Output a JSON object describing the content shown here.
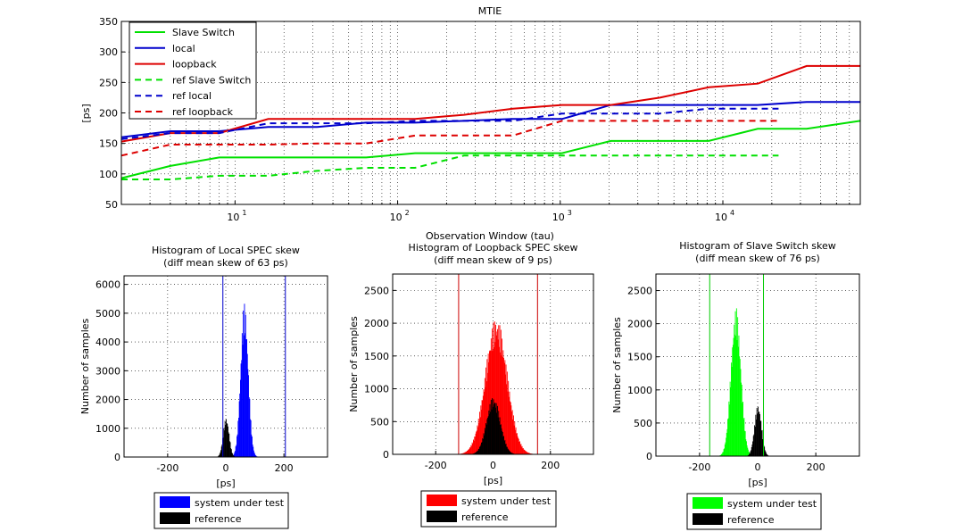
{
  "chart_data": [
    {
      "type": "line",
      "title": "MTIE",
      "xlabel": "Observation Window (tau)",
      "ylabel": "[ps]",
      "xscale": "log",
      "xlim": [
        2,
        70000
      ],
      "ylim": [
        50,
        350
      ],
      "yticks": [
        50,
        100,
        150,
        200,
        250,
        300,
        350
      ],
      "xticks": [
        10,
        100,
        1000,
        10000
      ],
      "xtick_labels": [
        [
          "10",
          "1"
        ],
        [
          "10",
          "2"
        ],
        [
          "10",
          "3"
        ],
        [
          "10",
          "4"
        ]
      ],
      "grid": true,
      "legend_position": "top-left",
      "series": [
        {
          "name": "Slave Switch",
          "color": "#00e000",
          "dash": false,
          "x": [
            2,
            4,
            8,
            16,
            32,
            64,
            128,
            256,
            512,
            1024,
            2048,
            4096,
            8192,
            16384,
            32768,
            70000
          ],
          "y": [
            93,
            113,
            127,
            127,
            127,
            127,
            134,
            134,
            134,
            134,
            154,
            154,
            154,
            174,
            174,
            187
          ]
        },
        {
          "name": "local",
          "color": "#0000cc",
          "dash": false,
          "x": [
            2,
            4,
            8,
            16,
            32,
            64,
            128,
            256,
            512,
            1024,
            2048,
            4096,
            8192,
            16384,
            32768,
            70000
          ],
          "y": [
            160,
            170,
            170,
            177,
            177,
            184,
            184,
            187,
            190,
            190,
            213,
            213,
            213,
            213,
            218,
            218
          ]
        },
        {
          "name": "loopback",
          "color": "#dd0000",
          "dash": false,
          "x": [
            2,
            4,
            8,
            16,
            32,
            64,
            128,
            256,
            512,
            1024,
            2048,
            4096,
            8192,
            16384,
            32768,
            70000
          ],
          "y": [
            153,
            167,
            167,
            190,
            190,
            190,
            190,
            197,
            207,
            213,
            213,
            225,
            242,
            248,
            277,
            277
          ]
        },
        {
          "name": "ref Slave Switch",
          "color": "#00e000",
          "dash": true,
          "x": [
            2,
            4,
            8,
            16,
            32,
            64,
            128,
            256,
            512,
            1024,
            2048,
            4096,
            8192,
            22000
          ],
          "y": [
            91,
            91,
            97,
            97,
            105,
            110,
            110,
            130,
            130,
            130,
            130,
            130,
            130,
            130
          ]
        },
        {
          "name": "ref local",
          "color": "#0000cc",
          "dash": true,
          "x": [
            2,
            4,
            8,
            16,
            32,
            64,
            128,
            256,
            512,
            1024,
            2048,
            4096,
            8192,
            22000
          ],
          "y": [
            157,
            167,
            167,
            183,
            183,
            183,
            187,
            187,
            187,
            199,
            199,
            199,
            207,
            207
          ]
        },
        {
          "name": "ref loopback",
          "color": "#dd0000",
          "dash": true,
          "x": [
            2,
            4,
            8,
            16,
            32,
            64,
            128,
            256,
            512,
            1024,
            2048,
            4096,
            8192,
            22000
          ],
          "y": [
            130,
            148,
            148,
            148,
            150,
            150,
            163,
            163,
            163,
            187,
            187,
            187,
            187,
            187
          ]
        }
      ]
    },
    {
      "type": "histogram",
      "title": "Histogram of Local SPEC skew",
      "subtitle": "(diff mean skew of 63 ps)",
      "xlabel": "[ps]",
      "ylabel": "Number of samples",
      "xlim": [
        -350,
        350
      ],
      "ylim": [
        0,
        6300
      ],
      "xticks": [
        -200,
        0,
        200
      ],
      "yticks": [
        0,
        1000,
        2000,
        3000,
        4000,
        5000,
        6000
      ],
      "limits": [
        -10,
        205
      ],
      "limit_color": "#0000cc",
      "grid": true,
      "legend_position": "below",
      "series": [
        {
          "name": "system under test",
          "color": "#0000ff",
          "mean": 63,
          "sd": 13,
          "peak": 5350
        },
        {
          "name": "reference",
          "color": "#000000",
          "mean": 0,
          "sd": 10,
          "peak": 1380
        }
      ]
    },
    {
      "type": "histogram",
      "title": "Histogram of Loopback SPEC skew",
      "subtitle": "(diff mean skew of 9 ps)",
      "xlabel": "[ps]",
      "ylabel": "Number of samples",
      "xlim": [
        -350,
        350
      ],
      "ylim": [
        0,
        2750
      ],
      "xticks": [
        -200,
        0,
        200
      ],
      "yticks": [
        0,
        500,
        1000,
        1500,
        2000,
        2500
      ],
      "limits": [
        -120,
        155
      ],
      "limit_color": "#cc0000",
      "grid": true,
      "legend_position": "below",
      "series": [
        {
          "name": "system under test",
          "color": "#ff0000",
          "mean": 10,
          "sd": 38,
          "peak": 2080
        },
        {
          "name": "reference",
          "color": "#000000",
          "mean": 0,
          "sd": 24,
          "peak": 880
        }
      ]
    },
    {
      "type": "histogram",
      "title": "Histogram of Slave Switch skew",
      "subtitle": "(diff mean skew of 76 ps)",
      "xlabel": "[ps]",
      "ylabel": "Number of samples",
      "xlim": [
        -350,
        350
      ],
      "ylim": [
        0,
        2750
      ],
      "xticks": [
        -200,
        0,
        200
      ],
      "yticks": [
        0,
        500,
        1000,
        1500,
        2000,
        2500
      ],
      "limits": [
        -165,
        20
      ],
      "limit_color": "#00cc00",
      "grid": true,
      "legend_position": "below",
      "series": [
        {
          "name": "system under test",
          "color": "#00ff00",
          "mean": -76,
          "sd": 17,
          "peak": 2250
        },
        {
          "name": "reference",
          "color": "#000000",
          "mean": 0,
          "sd": 12,
          "peak": 780
        }
      ]
    }
  ]
}
